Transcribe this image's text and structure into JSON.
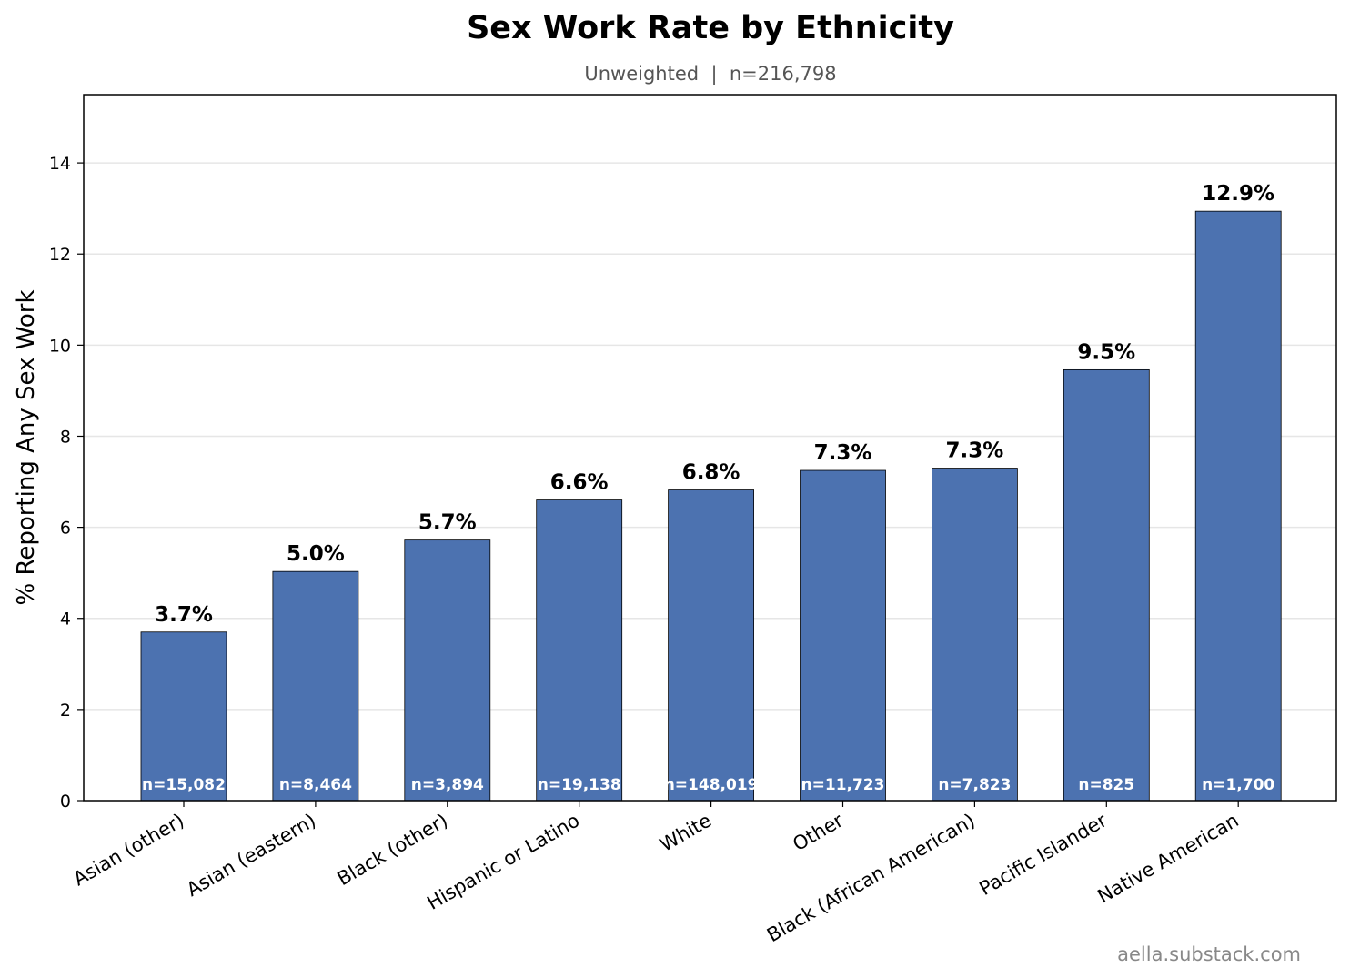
{
  "chart_data": {
    "type": "bar",
    "title": "Sex Work Rate by Ethnicity",
    "subtitle": "Unweighted  |  n=216,798",
    "xlabel": "",
    "ylabel": "% Reporting Any Sex Work",
    "ylim": [
      0,
      15.5
    ],
    "yticks": [
      0,
      2,
      4,
      6,
      8,
      10,
      12,
      14
    ],
    "grid": "horizontal",
    "categories": [
      "Asian (other)",
      "Asian (eastern)",
      "Black (other)",
      "Hispanic or Latino",
      "White",
      "Other",
      "Black (African American)",
      "Pacific Islander",
      "Native American"
    ],
    "values": [
      3.7,
      5.03,
      5.72,
      6.6,
      6.82,
      7.25,
      7.3,
      9.46,
      12.94
    ],
    "value_labels": [
      "3.7%",
      "5.0%",
      "5.7%",
      "6.6%",
      "6.8%",
      "7.3%",
      "7.3%",
      "9.5%",
      "12.9%"
    ],
    "n_labels": [
      "n=15,082",
      "n=8,464",
      "n=3,894",
      "n=19,138",
      "n=148,019",
      "n=11,723",
      "n=7,823",
      "n=825",
      "n=1,700"
    ],
    "bar_color": "#4c72b0",
    "watermark": "aella.substack.com"
  }
}
